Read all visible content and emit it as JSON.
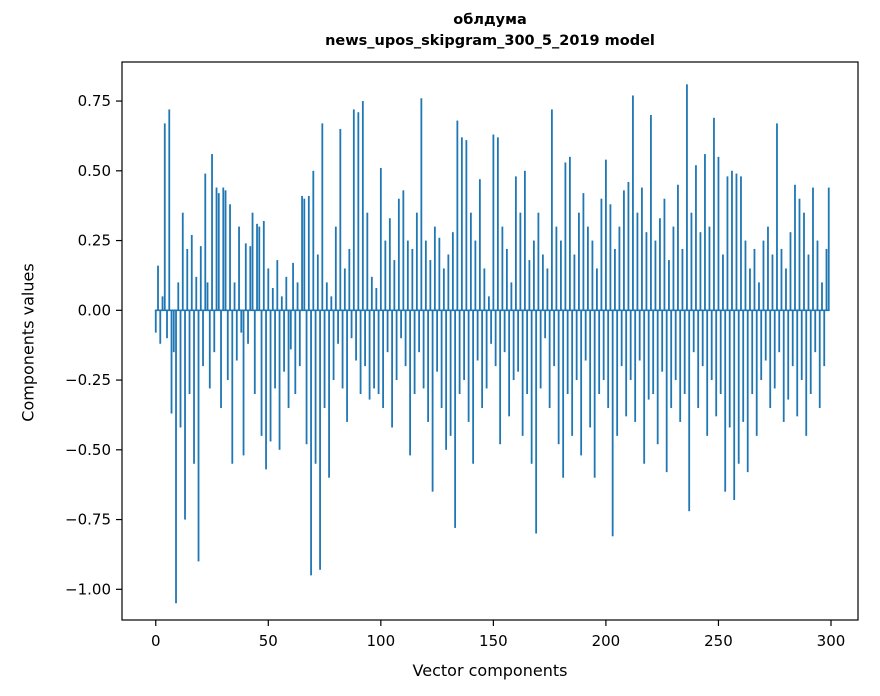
{
  "figure": {
    "title_line1": "облдума",
    "title_line2": "news_upos_skipgram_300_5_2019 model"
  },
  "chart_data": {
    "type": "bar",
    "title": "облдума — news_upos_skipgram_300_5_2019 model",
    "xlabel": "Vector components",
    "ylabel": "Components values",
    "bar_color": "#1f77b4",
    "grid": false,
    "legend": "none",
    "xlim": [
      -15,
      312
    ],
    "ylim": [
      -1.11,
      0.89
    ],
    "xticks": [
      0,
      50,
      100,
      150,
      200,
      250,
      300
    ],
    "xticklabels": [
      "0",
      "50",
      "100",
      "150",
      "200",
      "250",
      "300"
    ],
    "yticks": [
      -1.0,
      -0.75,
      -0.5,
      -0.25,
      0.0,
      0.25,
      0.5,
      0.75
    ],
    "yticklabels": [
      "−1.00",
      "−0.75",
      "−0.50",
      "−0.25",
      "0.00",
      "0.25",
      "0.50",
      "0.75"
    ],
    "x_start": 0,
    "values": [
      -0.08,
      0.16,
      -0.12,
      0.05,
      0.67,
      -0.1,
      0.72,
      -0.37,
      -0.15,
      -1.05,
      0.1,
      -0.42,
      0.35,
      -0.75,
      0.22,
      -0.3,
      0.27,
      -0.55,
      0.12,
      -0.9,
      0.23,
      -0.2,
      0.49,
      0.1,
      -0.28,
      0.56,
      -0.15,
      0.44,
      0.42,
      -0.35,
      0.44,
      0.43,
      -0.25,
      0.38,
      -0.55,
      0.1,
      -0.18,
      0.3,
      -0.08,
      -0.52,
      0.24,
      -0.12,
      0.23,
      0.35,
      -0.3,
      0.31,
      0.3,
      -0.45,
      0.32,
      -0.57,
      0.15,
      -0.47,
      0.08,
      -0.28,
      0.18,
      -0.5,
      0.05,
      -0.22,
      0.12,
      -0.35,
      -0.14,
      0.17,
      -0.3,
      0.1,
      -0.2,
      0.41,
      0.4,
      -0.48,
      0.41,
      -0.95,
      0.5,
      -0.55,
      0.2,
      -0.93,
      0.67,
      -0.35,
      0.1,
      -0.6,
      0.05,
      -0.25,
      0.3,
      -0.12,
      0.65,
      -0.28,
      0.15,
      -0.4,
      0.22,
      -0.1,
      0.72,
      -0.18,
      0.71,
      -0.3,
      0.75,
      -0.2,
      0.35,
      -0.32,
      0.12,
      -0.28,
      0.08,
      -0.3,
      0.51,
      -0.35,
      0.25,
      -0.15,
      0.33,
      -0.42,
      0.18,
      -0.25,
      0.4,
      -0.1,
      0.43,
      -0.2,
      0.25,
      -0.52,
      0.22,
      -0.3,
      0.35,
      -0.15,
      0.76,
      -0.28,
      0.25,
      -0.4,
      0.18,
      -0.65,
      0.3,
      -0.22,
      0.26,
      -0.35,
      0.15,
      -0.5,
      0.2,
      -0.45,
      0.28,
      -0.78,
      0.68,
      -0.3,
      0.62,
      -0.25,
      0.61,
      -0.4,
      0.35,
      -0.55,
      0.25,
      -0.18,
      0.47,
      -0.35,
      0.15,
      -0.28,
      0.05,
      -0.12,
      0.63,
      -0.2,
      0.62,
      -0.48,
      0.3,
      -0.15,
      0.22,
      -0.38,
      0.1,
      -0.25,
      0.48,
      -0.22,
      0.35,
      -0.45,
      0.5,
      -0.3,
      0.18,
      -0.55,
      0.25,
      -0.8,
      0.35,
      -0.28,
      0.2,
      -0.1,
      0.15,
      -0.35,
      0.72,
      -0.2,
      0.3,
      -0.48,
      0.25,
      -0.6,
      0.53,
      -0.3,
      0.55,
      -0.45,
      0.2,
      -0.25,
      0.35,
      -0.52,
      0.42,
      -0.18,
      0.3,
      -0.42,
      0.25,
      -0.6,
      0.15,
      -0.3,
      0.4,
      -0.25,
      0.54,
      -0.35,
      0.38,
      -0.81,
      0.22,
      -0.45,
      0.3,
      -0.2,
      0.43,
      -0.38,
      0.46,
      -0.25,
      0.77,
      -0.4,
      0.35,
      -0.18,
      0.44,
      -0.55,
      0.28,
      -0.32,
      0.7,
      -0.3,
      0.25,
      -0.48,
      0.33,
      -0.22,
      0.4,
      -0.58,
      0.18,
      -0.35,
      0.3,
      -0.25,
      0.45,
      -0.4,
      0.22,
      -0.3,
      0.81,
      -0.72,
      0.35,
      -0.15,
      0.52,
      -0.35,
      0.28,
      -0.2,
      0.56,
      -0.45,
      0.3,
      -0.25,
      0.69,
      -0.38,
      0.55,
      -0.3,
      0.2,
      -0.65,
      0.48,
      -0.42,
      0.5,
      -0.68,
      0.49,
      -0.55,
      0.48,
      -0.4,
      0.25,
      -0.58,
      0.15,
      -0.3,
      0.22,
      -0.45,
      0.1,
      -0.25,
      0.25,
      -0.18,
      0.3,
      -0.35,
      0.2,
      -0.28,
      0.67,
      -0.15,
      0.22,
      -0.4,
      0.15,
      -0.32,
      0.28,
      -0.2,
      0.45,
      -0.38,
      0.4,
      -0.25,
      0.35,
      -0.45,
      0.2,
      -0.3,
      0.44,
      -0.15,
      0.25,
      -0.35,
      0.1,
      -0.2,
      0.22,
      0.44
    ]
  }
}
